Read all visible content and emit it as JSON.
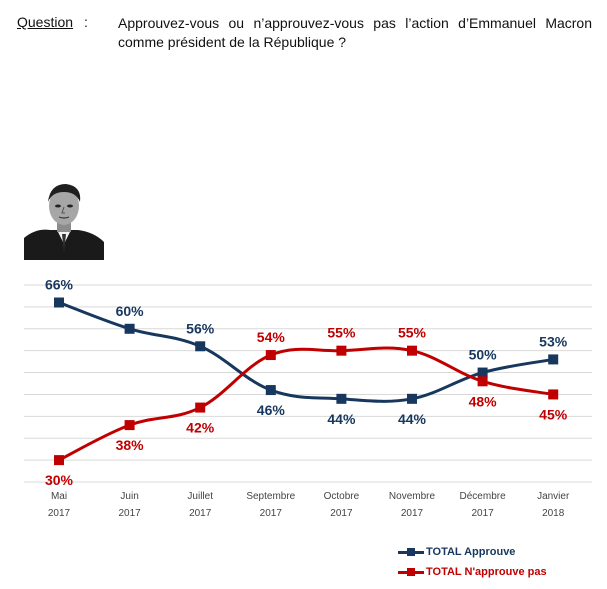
{
  "question": {
    "label": "Question",
    "colon": ":",
    "text": "Approuvez-vous ou n’approuvez-vous pas l’action d’Emmanuel Macron comme président de la République ?"
  },
  "colors": {
    "approve": "#17375e",
    "disapprove": "#c00000",
    "grid": "#d9d9d9"
  },
  "chart_data": {
    "type": "line",
    "categories": [
      [
        "Mai",
        "2017"
      ],
      [
        "Juin",
        "2017"
      ],
      [
        "Juillet",
        "2017"
      ],
      [
        "Septembre",
        "2017"
      ],
      [
        "Octobre",
        "2017"
      ],
      [
        "Novembre",
        "2017"
      ],
      [
        "Décembre",
        "2017"
      ],
      [
        "Janvier",
        "2018"
      ]
    ],
    "series": [
      {
        "name": "TOTAL Approuve",
        "color": "#17375e",
        "values": [
          66,
          60,
          56,
          46,
          44,
          44,
          50,
          53
        ],
        "labels": [
          "66%",
          "60%",
          "56%",
          "46%",
          "44%",
          "44%",
          "50%",
          "53%"
        ]
      },
      {
        "name": "TOTAL N'approuve pas",
        "color": "#c00000",
        "values": [
          30,
          38,
          42,
          54,
          55,
          55,
          48,
          45
        ],
        "labels": [
          "30%",
          "38%",
          "42%",
          "54%",
          "55%",
          "55%",
          "48%",
          "45%"
        ]
      }
    ],
    "ylim": [
      25,
      70
    ],
    "grid": true,
    "legend": "bottom-right"
  }
}
